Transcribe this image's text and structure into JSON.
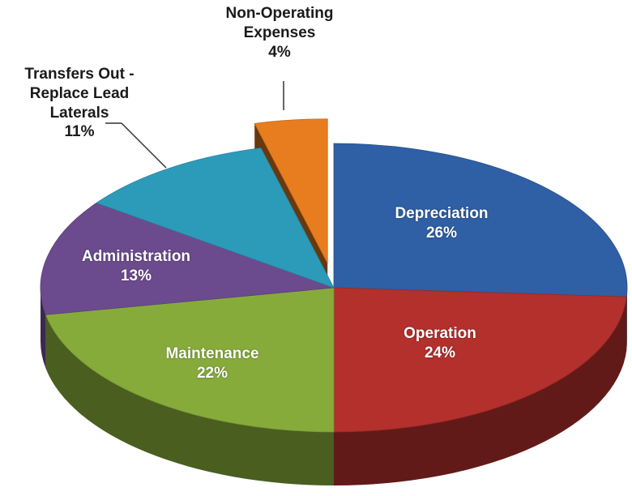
{
  "chart_data": {
    "type": "pie",
    "categories": [
      "Depreciation",
      "Operation",
      "Maintenance",
      "Administration",
      "Transfers Out - Replace Lead Laterals",
      "Non-Operating Expenses"
    ],
    "values": [
      26,
      24,
      22,
      13,
      11,
      4
    ],
    "value_labels": [
      "26%",
      "24%",
      "22%",
      "13%",
      "11%",
      "4%"
    ],
    "colors": [
      "#2f5fa5",
      "#b3302c",
      "#87ab3b",
      "#6b4b8d",
      "#2c9bb9",
      "#e87d1f"
    ],
    "exploded": [
      false,
      false,
      false,
      false,
      false,
      true
    ]
  }
}
